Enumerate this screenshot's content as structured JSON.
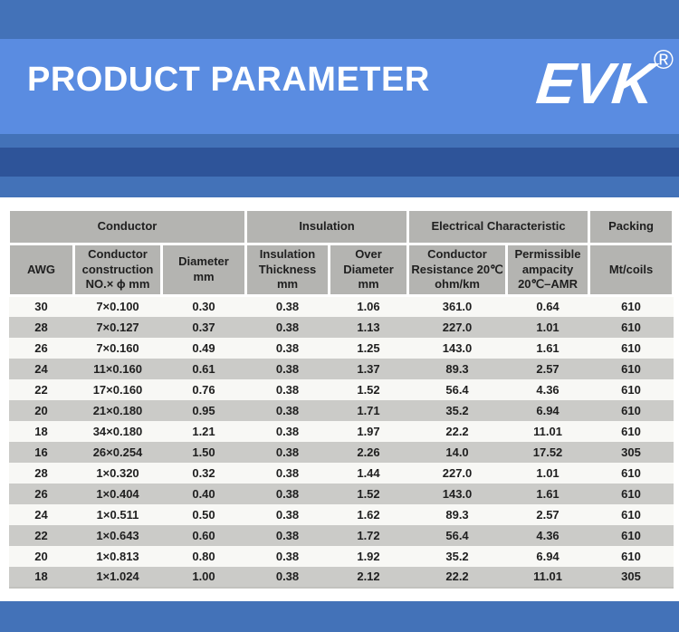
{
  "banner": {
    "title": "PRODUCT PARAMETER",
    "brand": "EVK",
    "registered_mark": "®",
    "colors": {
      "medium_blue": "#4372b8",
      "light_blue": "#5a8ce1",
      "dark_blue": "#2e5499"
    }
  },
  "table": {
    "colors": {
      "header_bg": "#b4b4b1",
      "row_bg": "#f8f8f5",
      "row_alt_bg": "#cbcbc8",
      "border": "#ffffff",
      "text": "#1f1f1f"
    },
    "group_headers": [
      {
        "label": "Conductor",
        "span": 3
      },
      {
        "label": "Insulation",
        "span": 2
      },
      {
        "label": "Electrical Characteristic",
        "span": 2
      },
      {
        "label": "Packing",
        "span": 1
      }
    ],
    "columns": [
      "AWG",
      "Conductor\nconstruction\nNO.× ϕ mm",
      "Diameter\nmm",
      "Insulation\nThickness\nmm",
      "Over\nDiameter\nmm",
      "Conductor\nResistance 20℃\nohm/km",
      "Permissible\nampacity\n20℃–AMR",
      "Mt/coils"
    ],
    "rows": [
      [
        "30",
        "7×0.100",
        "0.30",
        "0.38",
        "1.06",
        "361.0",
        "0.64",
        "610"
      ],
      [
        "28",
        "7×0.127",
        "0.37",
        "0.38",
        "1.13",
        "227.0",
        "1.01",
        "610"
      ],
      [
        "26",
        "7×0.160",
        "0.49",
        "0.38",
        "1.25",
        "143.0",
        "1.61",
        "610"
      ],
      [
        "24",
        "11×0.160",
        "0.61",
        "0.38",
        "1.37",
        "89.3",
        "2.57",
        "610"
      ],
      [
        "22",
        "17×0.160",
        "0.76",
        "0.38",
        "1.52",
        "56.4",
        "4.36",
        "610"
      ],
      [
        "20",
        "21×0.180",
        "0.95",
        "0.38",
        "1.71",
        "35.2",
        "6.94",
        "610"
      ],
      [
        "18",
        "34×0.180",
        "1.21",
        "0.38",
        "1.97",
        "22.2",
        "11.01",
        "610"
      ],
      [
        "16",
        "26×0.254",
        "1.50",
        "0.38",
        "2.26",
        "14.0",
        "17.52",
        "305"
      ],
      [
        "28",
        "1×0.320",
        "0.32",
        "0.38",
        "1.44",
        "227.0",
        "1.01",
        "610"
      ],
      [
        "26",
        "1×0.404",
        "0.40",
        "0.38",
        "1.52",
        "143.0",
        "1.61",
        "610"
      ],
      [
        "24",
        "1×0.511",
        "0.50",
        "0.38",
        "1.62",
        "89.3",
        "2.57",
        "610"
      ],
      [
        "22",
        "1×0.643",
        "0.60",
        "0.38",
        "1.72",
        "56.4",
        "4.36",
        "610"
      ],
      [
        "20",
        "1×0.813",
        "0.80",
        "0.38",
        "1.92",
        "35.2",
        "6.94",
        "610"
      ],
      [
        "18",
        "1×1.024",
        "1.00",
        "0.38",
        "2.12",
        "22.2",
        "11.01",
        "305"
      ]
    ]
  }
}
